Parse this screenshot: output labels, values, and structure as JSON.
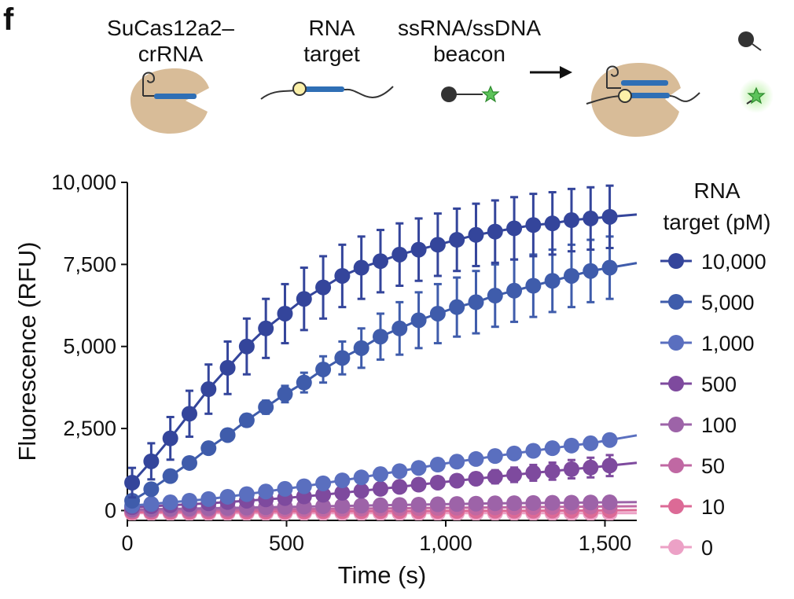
{
  "panel_label": "f",
  "schematic": {
    "items": [
      "SuCas12a2–\ncrRNA",
      "RNA\ntarget",
      "ssRNA/ssDNA\nbeacon"
    ],
    "protein_color": "#d8bc98",
    "dna_color": "#2f6fb5",
    "star_color": "#5cc35a"
  },
  "chart_data": {
    "type": "line",
    "xlabel": "Time (s)",
    "ylabel": "Fluorescence (RFU)",
    "xlim": [
      0,
      1600
    ],
    "ylim": [
      -300,
      10000
    ],
    "xticks": [
      0,
      500,
      1000,
      1500
    ],
    "xtick_labels": [
      "0",
      "500",
      "1,000",
      "1,500"
    ],
    "yticks": [
      0,
      2500,
      5000,
      7500,
      10000
    ],
    "ytick_labels": [
      "0",
      "2,500",
      "5,000",
      "7,500",
      "10,000"
    ],
    "x": [
      15,
      75,
      135,
      195,
      255,
      315,
      375,
      435,
      495,
      555,
      615,
      675,
      735,
      795,
      855,
      915,
      975,
      1035,
      1095,
      1155,
      1215,
      1275,
      1335,
      1395,
      1455,
      1515
    ],
    "legend_title": "RNA\ntarget (pM)",
    "legend_position": "right",
    "grid": false,
    "series": [
      {
        "name": "10,000",
        "color": "#34459b",
        "err": [
          450,
          550,
          650,
          700,
          750,
          800,
          850,
          900,
          900,
          950,
          950,
          950,
          950,
          950,
          950,
          950,
          950,
          950,
          950,
          950,
          950,
          950,
          950,
          950,
          950,
          950
        ],
        "values": [
          850,
          1500,
          2200,
          2950,
          3700,
          4350,
          5000,
          5550,
          6000,
          6450,
          6800,
          7150,
          7400,
          7600,
          7800,
          7950,
          8100,
          8250,
          8400,
          8500,
          8600,
          8700,
          8750,
          8850,
          8900,
          8950
        ]
      },
      {
        "name": "5,000",
        "color": "#3f5cab",
        "err": [
          100,
          100,
          100,
          120,
          150,
          150,
          180,
          200,
          250,
          300,
          400,
          500,
          600,
          700,
          800,
          850,
          900,
          900,
          950,
          950,
          950,
          950,
          950,
          950,
          950,
          950
        ],
        "values": [
          300,
          650,
          1050,
          1450,
          1900,
          2300,
          2750,
          3150,
          3550,
          3900,
          4300,
          4650,
          4950,
          5300,
          5550,
          5800,
          6000,
          6200,
          6350,
          6550,
          6700,
          6850,
          7000,
          7150,
          7300,
          7400
        ]
      },
      {
        "name": "1,000",
        "color": "#5a6fbf",
        "err": [
          0,
          0,
          0,
          0,
          0,
          0,
          0,
          0,
          0,
          0,
          0,
          0,
          0,
          0,
          0,
          0,
          0,
          0,
          0,
          0,
          0,
          0,
          0,
          0,
          0,
          0
        ],
        "values": [
          150,
          200,
          250,
          300,
          350,
          420,
          500,
          580,
          660,
          740,
          830,
          920,
          1010,
          1110,
          1200,
          1300,
          1400,
          1490,
          1570,
          1660,
          1740,
          1820,
          1900,
          1980,
          2050,
          2150
        ]
      },
      {
        "name": "500",
        "color": "#7e4a9e",
        "err": [
          0,
          0,
          0,
          0,
          0,
          0,
          0,
          0,
          0,
          0,
          0,
          0,
          0,
          60,
          80,
          100,
          120,
          150,
          180,
          200,
          220,
          240,
          260,
          280,
          300,
          320
        ],
        "values": [
          100,
          130,
          160,
          190,
          220,
          260,
          300,
          340,
          380,
          430,
          480,
          540,
          600,
          660,
          720,
          790,
          850,
          910,
          970,
          1030,
          1090,
          1150,
          1200,
          1260,
          1310,
          1370
        ]
      },
      {
        "name": "100",
        "color": "#9d63a8",
        "err": [
          0,
          0,
          0,
          0,
          0,
          0,
          0,
          0,
          0,
          0,
          0,
          0,
          0,
          0,
          0,
          0,
          0,
          0,
          0,
          0,
          0,
          0,
          0,
          0,
          0,
          0
        ],
        "values": [
          30,
          40,
          50,
          60,
          70,
          80,
          90,
          100,
          110,
          120,
          130,
          140,
          150,
          160,
          170,
          180,
          190,
          200,
          210,
          220,
          225,
          230,
          235,
          240,
          245,
          250
        ]
      },
      {
        "name": "50",
        "color": "#c068a3",
        "err": [
          0,
          0,
          0,
          0,
          0,
          0,
          0,
          0,
          0,
          0,
          0,
          0,
          0,
          0,
          0,
          0,
          0,
          0,
          0,
          0,
          0,
          0,
          0,
          0,
          0,
          0
        ],
        "values": [
          0,
          5,
          10,
          15,
          20,
          25,
          30,
          35,
          40,
          45,
          50,
          55,
          60,
          65,
          70,
          75,
          80,
          85,
          90,
          95,
          100,
          105,
          110,
          115,
          120,
          125
        ]
      },
      {
        "name": "10",
        "color": "#dc6a96",
        "err": [
          0,
          0,
          0,
          0,
          0,
          0,
          0,
          0,
          0,
          0,
          0,
          0,
          0,
          0,
          0,
          0,
          0,
          0,
          0,
          0,
          0,
          0,
          0,
          0,
          0,
          0
        ],
        "values": [
          -50,
          -45,
          -40,
          -40,
          -35,
          -35,
          -30,
          -30,
          -25,
          -25,
          -20,
          -20,
          -20,
          -15,
          -15,
          -15,
          -10,
          -10,
          -10,
          -5,
          -5,
          -5,
          0,
          0,
          0,
          5
        ]
      },
      {
        "name": "0",
        "color": "#eca1c6",
        "err": [
          0,
          0,
          0,
          0,
          0,
          0,
          0,
          0,
          0,
          0,
          0,
          0,
          0,
          0,
          0,
          0,
          0,
          0,
          0,
          0,
          0,
          0,
          0,
          0,
          0,
          0
        ],
        "values": [
          -80,
          -80,
          -80,
          -80,
          -80,
          -80,
          -80,
          -80,
          -80,
          -80,
          -80,
          -80,
          -80,
          -80,
          -80,
          -80,
          -80,
          -80,
          -80,
          -80,
          -80,
          -80,
          -80,
          -80,
          -80,
          -80
        ]
      }
    ]
  }
}
